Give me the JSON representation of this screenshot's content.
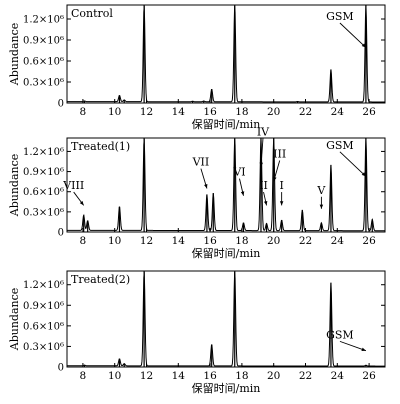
{
  "chart_data": [
    {
      "type": "line",
      "panel_label": "Control",
      "xlabel": "保留时间/min",
      "ylabel": "Abundance",
      "xlim": [
        7,
        27
      ],
      "ylim": [
        0,
        1400000
      ],
      "x_ticks": [
        "8",
        "10",
        "12",
        "14",
        "16",
        "18",
        "20",
        "22",
        "24",
        "26"
      ],
      "y_ticks": [
        "0",
        "0.3×10⁶",
        "0.6×10⁶",
        "0.9×10⁶",
        "1.2×10⁶"
      ],
      "baseline": 20000,
      "peaks": [
        {
          "x": 8.1,
          "y": 30000
        },
        {
          "x": 10.3,
          "y": 110000
        },
        {
          "x": 10.6,
          "y": 45000
        },
        {
          "x": 11.85,
          "y": 1400000
        },
        {
          "x": 14.9,
          "y": 28000
        },
        {
          "x": 15.6,
          "y": 30000
        },
        {
          "x": 16.1,
          "y": 200000
        },
        {
          "x": 17.55,
          "y": 1400000
        },
        {
          "x": 21.5,
          "y": 25000
        },
        {
          "x": 23.6,
          "y": 480000
        },
        {
          "x": 25.8,
          "y": 1400000
        }
      ],
      "annotations": [
        {
          "text": "GSM",
          "x": 25.8,
          "y": 1100000
        }
      ]
    },
    {
      "type": "line",
      "panel_label": "Treated(1)",
      "xlabel": "保留时间/min",
      "ylabel": "Abundance",
      "xlim": [
        7,
        27
      ],
      "ylim": [
        0,
        1400000
      ],
      "x_ticks": [
        "8",
        "10",
        "12",
        "14",
        "16",
        "18",
        "20",
        "22",
        "24",
        "26"
      ],
      "y_ticks": [
        "0",
        "0.3×10⁶",
        "0.6×10⁶",
        "0.9×10⁶",
        "1.2×10⁶"
      ],
      "baseline": 25000,
      "peaks": [
        {
          "x": 8.05,
          "y": 250000
        },
        {
          "x": 8.3,
          "y": 170000
        },
        {
          "x": 10.3,
          "y": 380000
        },
        {
          "x": 11.85,
          "y": 1400000
        },
        {
          "x": 15.8,
          "y": 560000
        },
        {
          "x": 16.2,
          "y": 580000
        },
        {
          "x": 17.55,
          "y": 1400000
        },
        {
          "x": 18.1,
          "y": 140000
        },
        {
          "x": 19.2,
          "y": 1400000
        },
        {
          "x": 19.55,
          "y": 130000
        },
        {
          "x": 20.0,
          "y": 1400000
        },
        {
          "x": 20.5,
          "y": 180000
        },
        {
          "x": 21.8,
          "y": 330000
        },
        {
          "x": 23.0,
          "y": 140000
        },
        {
          "x": 23.6,
          "y": 1000000
        },
        {
          "x": 25.8,
          "y": 1400000
        },
        {
          "x": 26.2,
          "y": 190000
        }
      ],
      "annotations": [
        {
          "text": "VIII",
          "x": 8.05,
          "y": 550000
        },
        {
          "text": "VII",
          "x": 15.8,
          "y": 900000
        },
        {
          "text": "VI",
          "x": 18.1,
          "y": 750000
        },
        {
          "text": "IV",
          "x": 19.2,
          "y": 1350000
        },
        {
          "text": "II",
          "x": 19.55,
          "y": 550000
        },
        {
          "text": "III",
          "x": 20.0,
          "y": 1050000
        },
        {
          "text": "I",
          "x": 20.5,
          "y": 550000
        },
        {
          "text": "V",
          "x": 23.0,
          "y": 480000
        },
        {
          "text": "GSM",
          "x": 25.8,
          "y": 1150000
        }
      ]
    },
    {
      "type": "line",
      "panel_label": "Treated(2)",
      "xlabel": "保留时间/min",
      "ylabel": "Abundance",
      "xlim": [
        7,
        27
      ],
      "ylim": [
        0,
        1400000
      ],
      "x_ticks": [
        "8",
        "10",
        "12",
        "14",
        "16",
        "18",
        "20",
        "22",
        "24",
        "26"
      ],
      "y_ticks": [
        "0",
        "0.3×10⁶",
        "0.6×10⁶",
        "0.9×10⁶",
        "1.2×10⁶"
      ],
      "baseline": 18000,
      "peaks": [
        {
          "x": 8.1,
          "y": 28000
        },
        {
          "x": 10.3,
          "y": 120000
        },
        {
          "x": 10.6,
          "y": 50000
        },
        {
          "x": 11.85,
          "y": 1400000
        },
        {
          "x": 16.1,
          "y": 330000
        },
        {
          "x": 17.55,
          "y": 1400000
        },
        {
          "x": 23.6,
          "y": 1230000
        },
        {
          "x": 25.8,
          "y": 30000
        }
      ],
      "annotations": [
        {
          "text": "GSM",
          "x": 25.8,
          "y": 330000
        }
      ]
    }
  ]
}
